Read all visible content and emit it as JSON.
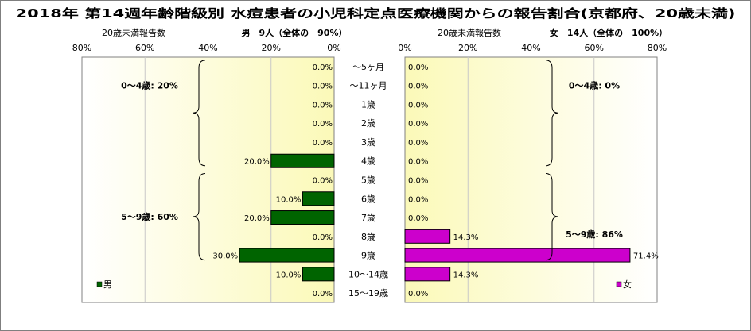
{
  "title": "2018年 第14週年齢階級別 水痘患者の小児科定点医療機関からの報告割合(京都府、20歳未満)",
  "chart_data": [
    {
      "type": "bar",
      "orientation": "horizontal",
      "direction": "right-to-left",
      "panel": "male",
      "axis_caption": "20歳未満報告数",
      "header": "男　9人（全体の　90%）",
      "xlim": [
        0,
        80
      ],
      "ticks": [
        "80%",
        "60%",
        "40%",
        "20%",
        "0%"
      ],
      "tick_values": [
        80,
        60,
        40,
        20,
        0
      ],
      "grid": true,
      "categories": [
        "～5ヶ月",
        "～11ヶ月",
        "1歳",
        "2歳",
        "3歳",
        "4歳",
        "5歳",
        "6歳",
        "7歳",
        "8歳",
        "9歳",
        "10～14歳",
        "15～19歳"
      ],
      "series": [
        {
          "name": "男",
          "color": "#006400",
          "values": [
            0,
            0,
            0,
            0,
            0,
            20,
            0,
            10,
            20,
            0,
            30,
            10,
            0
          ],
          "labels": [
            "0.0%",
            "0.0%",
            "0.0%",
            "0.0%",
            "0.0%",
            "20.0%",
            "0.0%",
            "10.0%",
            "20.0%",
            "0.0%",
            "30.0%",
            "10.0%",
            "0.0%"
          ]
        }
      ],
      "annotations": [
        {
          "text": "0～4歳: 20%",
          "from": 0,
          "to": 5
        },
        {
          "text": "5～9歳: 60%",
          "from": 6,
          "to": 10
        }
      ],
      "legend": "bottom-left"
    },
    {
      "type": "bar",
      "orientation": "horizontal",
      "direction": "left-to-right",
      "panel": "female",
      "axis_caption": "20歳未満報告数",
      "header": "女　14人（全体の　100%）",
      "xlim": [
        0,
        80
      ],
      "ticks": [
        "0%",
        "20%",
        "40%",
        "60%",
        "80%"
      ],
      "tick_values": [
        0,
        20,
        40,
        60,
        80
      ],
      "grid": true,
      "categories": [
        "～5ヶ月",
        "～11ヶ月",
        "1歳",
        "2歳",
        "3歳",
        "4歳",
        "5歳",
        "6歳",
        "7歳",
        "8歳",
        "9歳",
        "10～14歳",
        "15～19歳"
      ],
      "series": [
        {
          "name": "女",
          "color": "#cc00cc",
          "values": [
            0,
            0,
            0,
            0,
            0,
            0,
            0,
            0,
            0,
            14.3,
            71.4,
            14.3,
            0
          ],
          "labels": [
            "0.0%",
            "0.0%",
            "0.0%",
            "0.0%",
            "0.0%",
            "0.0%",
            "0.0%",
            "0.0%",
            "0.0%",
            "14.3%",
            "71.4%",
            "14.3%",
            "0.0%"
          ]
        }
      ],
      "annotations": [
        {
          "text": "0～4歳: 0%",
          "from": 0,
          "to": 5
        },
        {
          "text": "5～9歳: 86%",
          "from": 6,
          "to": 10
        }
      ],
      "legend": "bottom-right"
    }
  ],
  "colors": {
    "male": "#006400",
    "female": "#cc00cc",
    "plot_gradient_inner": "#fffde0",
    "plot_gradient_outer": "#fbfac0",
    "plot_bg_edge": "#ffffff"
  }
}
